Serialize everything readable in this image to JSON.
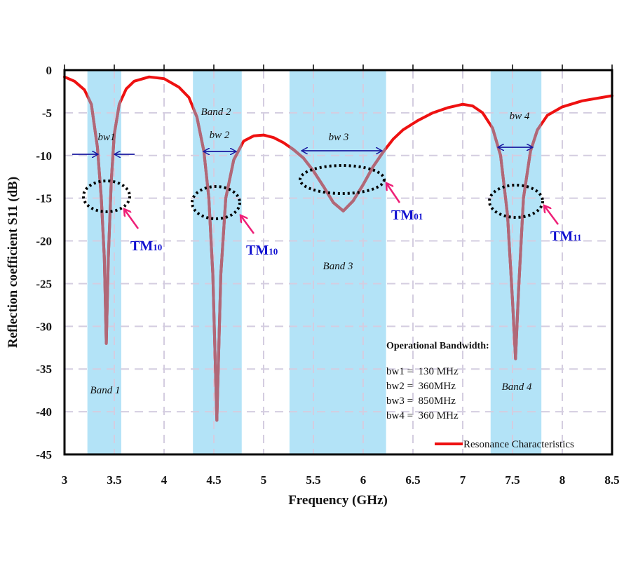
{
  "chart_data": {
    "type": "line",
    "xlabel": "Frequency (GHz)",
    "ylabel": "Reflection coefficient S11 (dB)",
    "xlim": [
      3,
      8.5
    ],
    "ylim": [
      -45,
      0
    ],
    "xticks": [
      "3",
      "3.5",
      "4",
      "4.5",
      "5",
      "5.5",
      "6",
      "6.5",
      "7",
      "7.5",
      "8",
      "8.5"
    ],
    "yticks": [
      "0",
      "-5",
      "-10",
      "-15",
      "-20",
      "-25",
      "-30",
      "-35",
      "-40",
      "-45"
    ],
    "grid": true,
    "legend": {
      "position": "bottom-right",
      "label": "Resonance Characteristics"
    },
    "series": [
      {
        "name": "Resonance Characteristics",
        "color": "#ee1111",
        "x": [
          3.0,
          3.1,
          3.2,
          3.27,
          3.33,
          3.37,
          3.4,
          3.42,
          3.44,
          3.47,
          3.5,
          3.55,
          3.62,
          3.7,
          3.85,
          4.0,
          4.15,
          4.25,
          4.33,
          4.4,
          4.45,
          4.49,
          4.53,
          4.57,
          4.62,
          4.7,
          4.8,
          4.9,
          5.0,
          5.1,
          5.2,
          5.3,
          5.4,
          5.5,
          5.6,
          5.7,
          5.8,
          5.9,
          6.0,
          6.1,
          6.2,
          6.3,
          6.4,
          6.55,
          6.7,
          6.85,
          7.0,
          7.1,
          7.2,
          7.3,
          7.38,
          7.45,
          7.5,
          7.53,
          7.56,
          7.61,
          7.68,
          7.75,
          7.85,
          8.0,
          8.2,
          8.5
        ],
        "y": [
          -0.8,
          -1.3,
          -2.3,
          -4,
          -9,
          -15,
          -22,
          -32,
          -22,
          -13,
          -7.5,
          -4,
          -2.2,
          -1.3,
          -0.8,
          -1.0,
          -2.0,
          -3.2,
          -5.5,
          -9.5,
          -15,
          -24,
          -41,
          -24,
          -15,
          -10.5,
          -8.3,
          -7.7,
          -7.6,
          -7.9,
          -8.5,
          -9.3,
          -10.3,
          -11.8,
          -13.6,
          -15.5,
          -16.5,
          -15.3,
          -13.4,
          -11.3,
          -9.6,
          -8.1,
          -7.0,
          -5.9,
          -5.0,
          -4.4,
          -4.0,
          -4.2,
          -5.0,
          -6.8,
          -10,
          -17,
          -27,
          -33.8,
          -26,
          -15,
          -9.5,
          -7,
          -5.3,
          -4.3,
          -3.6,
          -3.0
        ]
      }
    ],
    "bands": [
      {
        "label": "Band 1",
        "from": 3.23,
        "to": 3.57
      },
      {
        "label": "Band 2",
        "from": 4.29,
        "to": 4.78
      },
      {
        "label": "Band 3",
        "from": 5.26,
        "to": 6.23
      },
      {
        "label": "Band 4",
        "from": 7.28,
        "to": 7.79
      }
    ],
    "bandwidth_labels": [
      "bw1",
      "bw 2",
      "bw 3",
      "bw 4"
    ],
    "modes": [
      "TM",
      "10",
      "TM",
      "10",
      "TM",
      "01",
      "TM",
      "11"
    ],
    "operational_bandwidth": {
      "title": "Operational Bandwidth:",
      "lines": [
        "bw1 =  130 MHz",
        "bw2 =  360MHz",
        "bw3 =  850MHz",
        "bw4 =  360 MHz"
      ]
    },
    "colors": {
      "curve": "#ee1111",
      "curve_in_band": "#b06878",
      "band": "#b3e3f7",
      "arrow": "#1a1aa0",
      "pointer": "#ee1f77"
    }
  }
}
